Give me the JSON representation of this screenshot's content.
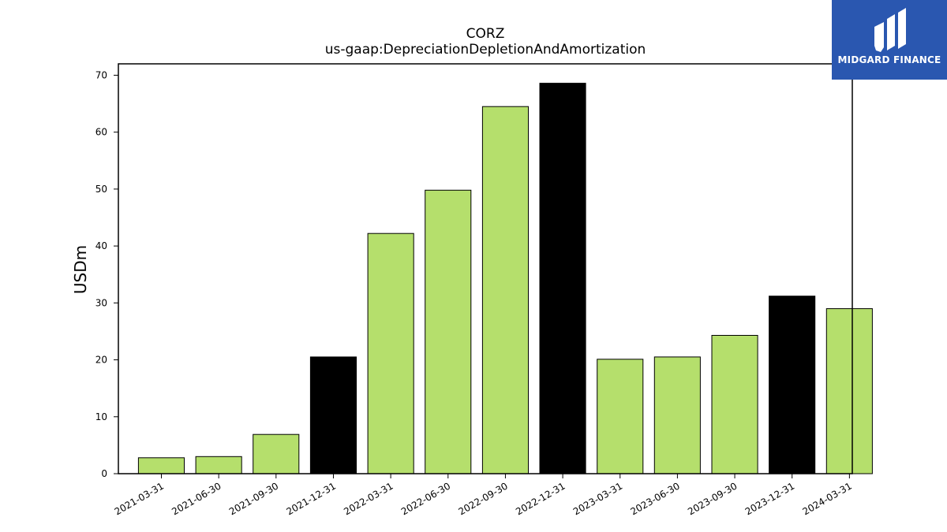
{
  "logo": {
    "text": "MIDGARD FINANCE"
  },
  "colors": {
    "normal_bar": "#b5df6c",
    "year_end_bar": "#000000",
    "logo_bg": "#2a57b0"
  },
  "chart_data": {
    "type": "bar",
    "title": "CORZ",
    "subtitle": "us-gaap:DepreciationDepletionAndAmortization",
    "xlabel": "",
    "ylabel": "USDm",
    "ylim": [
      0,
      72
    ],
    "yticks": [
      0,
      10,
      20,
      30,
      40,
      50,
      60,
      70
    ],
    "grid": false,
    "categories": [
      "2021-03-31",
      "2021-06-30",
      "2021-09-30",
      "2021-12-31",
      "2022-03-31",
      "2022-06-30",
      "2022-09-30",
      "2022-12-31",
      "2023-03-31",
      "2023-06-30",
      "2023-09-30",
      "2023-12-31",
      "2024-03-31"
    ],
    "values": [
      2.8,
      3.0,
      6.9,
      20.5,
      42.2,
      49.8,
      64.5,
      68.6,
      20.1,
      20.5,
      24.3,
      31.2,
      29.0
    ],
    "highlighted": [
      false,
      false,
      false,
      true,
      false,
      false,
      false,
      true,
      false,
      false,
      false,
      true,
      false
    ]
  }
}
